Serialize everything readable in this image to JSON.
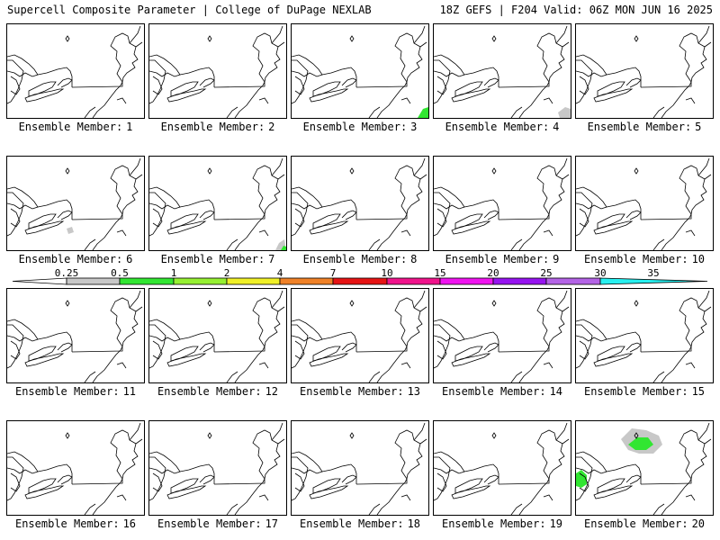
{
  "header": {
    "left": "Supercell Composite Parameter | College of DuPage NEXLAB",
    "right": "18Z GEFS | F204 Valid: 06Z MON JUN 16 2025"
  },
  "panel_label": "Ensemble Member:",
  "members": [
    {
      "label": "1",
      "shading": []
    },
    {
      "label": "2",
      "shading": []
    },
    {
      "label": "3",
      "shading": [
        "green-southeast-corner"
      ]
    },
    {
      "label": "4",
      "shading": [
        "gray-southeast"
      ]
    },
    {
      "label": "5",
      "shading": []
    },
    {
      "label": "6",
      "shading": [
        "gray-south-central"
      ]
    },
    {
      "label": "7",
      "shading": [
        "gray-green-southeast"
      ]
    },
    {
      "label": "8",
      "shading": []
    },
    {
      "label": "9",
      "shading": []
    },
    {
      "label": "10",
      "shading": []
    },
    {
      "label": "11",
      "shading": []
    },
    {
      "label": "12",
      "shading": []
    },
    {
      "label": "13",
      "shading": []
    },
    {
      "label": "14",
      "shading": []
    },
    {
      "label": "15",
      "shading": []
    },
    {
      "label": "16",
      "shading": []
    },
    {
      "label": "17",
      "shading": []
    },
    {
      "label": "18",
      "shading": []
    },
    {
      "label": "19",
      "shading": []
    },
    {
      "label": "20",
      "shading": [
        "green-gray-north-quebec",
        "green-west-ontario"
      ]
    }
  ],
  "legend": {
    "ticks": [
      "0.25",
      "0.5",
      "1",
      "2",
      "4",
      "7",
      "10",
      "15",
      "20",
      "25",
      "30",
      "35"
    ],
    "colors": [
      "#c8c8c8",
      "#32e632",
      "#96f032",
      "#f0f028",
      "#f08228",
      "#e61414",
      "#f0148c",
      "#f014f0",
      "#9614f0",
      "#b464e6",
      "#28f0f0"
    ]
  }
}
